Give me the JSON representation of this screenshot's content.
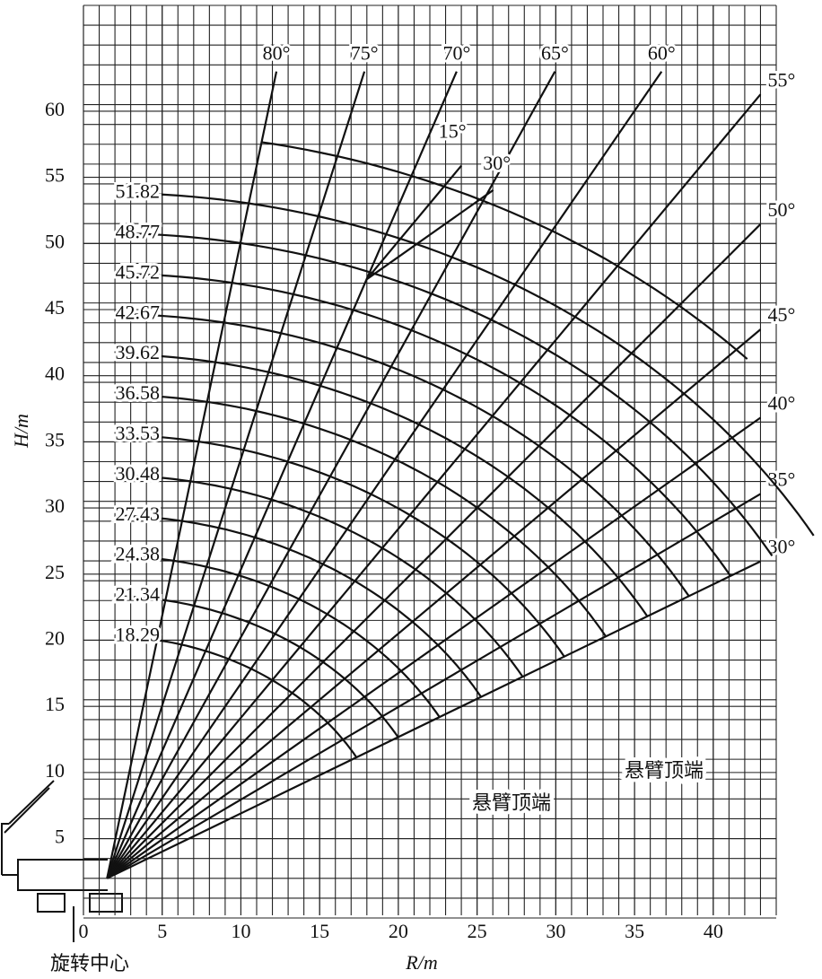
{
  "chart_data": {
    "type": "crane-range",
    "xlabel": "R/m",
    "ylabel": "H/m",
    "xlim": [
      0,
      44
    ],
    "ylim": [
      -1,
      68
    ],
    "xticks": [
      0,
      5,
      10,
      15,
      20,
      25,
      30,
      35,
      40
    ],
    "yticks": [
      5,
      10,
      15,
      20,
      25,
      30,
      35,
      40,
      45,
      50,
      55,
      60
    ],
    "grid": true,
    "boom_lengths": [
      18.29,
      21.34,
      24.38,
      27.43,
      30.48,
      33.53,
      36.58,
      39.62,
      42.67,
      45.72,
      48.77,
      51.82
    ],
    "boom_angles": [
      {
        "value": 30,
        "label": "30°"
      },
      {
        "value": 35,
        "label": "35°"
      },
      {
        "value": 40,
        "label": "40°"
      },
      {
        "value": 45,
        "label": "45°"
      },
      {
        "value": 50,
        "label": "50°"
      },
      {
        "value": 55,
        "label": "55°"
      },
      {
        "value": 60,
        "label": "60°"
      },
      {
        "value": 65,
        "label": "65°"
      },
      {
        "value": 70,
        "label": "70°"
      },
      {
        "value": 75,
        "label": "75°"
      },
      {
        "value": 80,
        "label": "80°"
      }
    ],
    "jib_offsets": [
      {
        "value": 15,
        "label": "15°"
      },
      {
        "value": 30,
        "label": "30°"
      }
    ],
    "annotations": [
      "悬臂顶端",
      "悬臂顶端",
      "旋转中心"
    ]
  }
}
